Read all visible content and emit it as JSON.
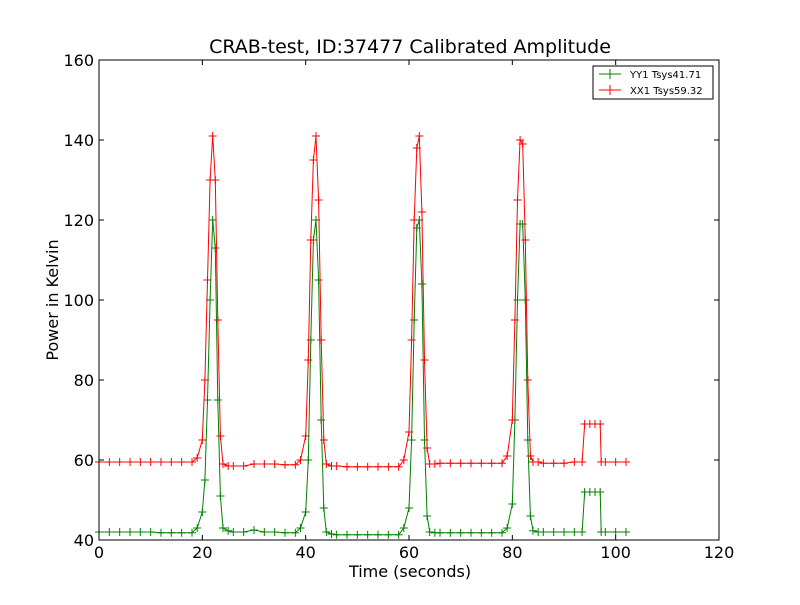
{
  "chart_data": {
    "type": "line",
    "title": "CRAB-test, ID:37477 Calibrated Amplitude",
    "xlabel": "Time (seconds)",
    "ylabel": "Power in Kelvin",
    "xlim": [
      0,
      120
    ],
    "ylim": [
      40,
      160
    ],
    "x_ticks": [
      0,
      20,
      40,
      60,
      80,
      100,
      120
    ],
    "y_ticks": [
      40,
      60,
      80,
      100,
      120,
      140,
      160
    ],
    "x_tick_labels": [
      "0",
      "20",
      "40",
      "60",
      "80",
      "100",
      "120"
    ],
    "y_tick_labels": [
      "40",
      "60",
      "80",
      "100",
      "120",
      "140",
      "160"
    ],
    "grid": false,
    "legend_position": "top-right",
    "marker": "+",
    "series": [
      {
        "name": "YY1 Tsys41.71",
        "color": "#008000",
        "x": [
          0,
          2,
          4,
          6,
          8,
          10,
          12,
          14,
          16,
          18,
          19,
          20,
          20.5,
          21,
          21.5,
          22,
          22.5,
          23,
          23.5,
          24,
          25,
          26,
          28,
          30,
          32,
          34,
          36,
          38,
          39,
          40,
          40.5,
          41,
          41.5,
          42,
          42.5,
          43,
          43.5,
          44,
          45,
          46,
          48,
          50,
          52,
          54,
          56,
          58,
          59,
          60,
          60.5,
          61,
          61.5,
          62,
          62.5,
          63,
          63.5,
          64,
          65,
          66,
          68,
          70,
          72,
          74,
          76,
          78,
          79,
          80,
          80.5,
          81,
          81.5,
          82,
          82.5,
          83,
          83.5,
          84,
          85,
          86,
          88,
          90,
          92,
          93.5,
          94,
          95,
          96,
          97,
          97.2,
          98,
          100,
          102
        ],
        "values": [
          42,
          42,
          42,
          42,
          42,
          42,
          41.8,
          41.8,
          41.8,
          41.8,
          43,
          47,
          55,
          75,
          100,
          120,
          113,
          75,
          51,
          43,
          42.3,
          42,
          42,
          42.5,
          42,
          42,
          41.8,
          41.8,
          43,
          47,
          60,
          90,
          115,
          120,
          105,
          70,
          48,
          42,
          41.5,
          41.3,
          41.3,
          41.3,
          41.3,
          41.3,
          41.3,
          41.3,
          43,
          48,
          65,
          95,
          118,
          120,
          104,
          65,
          46,
          42,
          41.8,
          41.8,
          41.8,
          41.8,
          41.8,
          41.8,
          41.8,
          41.8,
          43,
          49,
          70,
          100,
          119,
          119,
          100,
          65,
          46,
          42.3,
          42,
          42,
          42,
          42,
          42,
          42,
          52,
          52,
          52,
          52,
          42,
          42,
          42,
          42
        ]
      },
      {
        "name": "XX1 Tsys59.32",
        "color": "#ff0000",
        "x": [
          0,
          2,
          4,
          6,
          8,
          10,
          12,
          14,
          16,
          18,
          19,
          20,
          20.5,
          21,
          21.5,
          22,
          22.5,
          23,
          23.5,
          24,
          25,
          26,
          28,
          30,
          32,
          34,
          36,
          38,
          39,
          40,
          40.5,
          41,
          41.5,
          42,
          42.5,
          43,
          43.5,
          44,
          45,
          46,
          48,
          50,
          52,
          54,
          56,
          58,
          59,
          60,
          60.5,
          61,
          61.5,
          62,
          62.5,
          63,
          63.5,
          64,
          65,
          66,
          68,
          70,
          72,
          74,
          76,
          78,
          79,
          80,
          80.5,
          81,
          81.5,
          82,
          82.5,
          83,
          83.5,
          84,
          85,
          86,
          88,
          90,
          92,
          93.5,
          94,
          95,
          96,
          97,
          97.2,
          98,
          100,
          102
        ],
        "values": [
          59.5,
          59.5,
          59.5,
          59.5,
          59.5,
          59.5,
          59.5,
          59.5,
          59.5,
          59.5,
          60.5,
          65,
          80,
          105,
          130,
          141,
          130,
          95,
          66,
          59,
          58.5,
          58.5,
          58.5,
          59,
          59,
          59,
          58.8,
          58.8,
          60,
          66,
          85,
          115,
          135,
          141,
          125,
          90,
          65,
          59,
          58.5,
          58.5,
          58.3,
          58.3,
          58.3,
          58.3,
          58.3,
          58.3,
          60,
          67,
          90,
          120,
          138,
          141,
          122,
          85,
          63,
          59,
          59,
          59.2,
          59.2,
          59.2,
          59.2,
          59.2,
          59.2,
          59.2,
          61,
          70,
          95,
          125,
          140,
          139,
          115,
          80,
          61,
          59.5,
          59.5,
          59.2,
          59.2,
          59.2,
          59.5,
          59.5,
          69,
          69,
          69,
          69,
          59.5,
          59.5,
          59.5,
          59.5
        ]
      }
    ]
  }
}
